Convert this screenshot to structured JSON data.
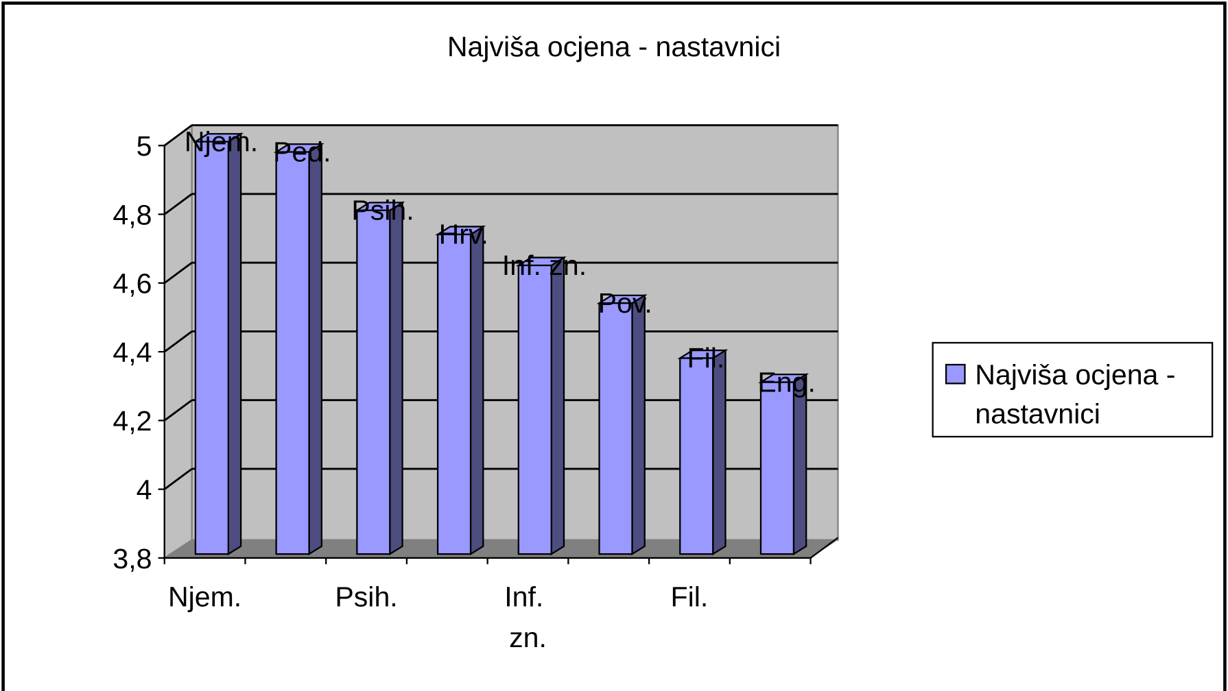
{
  "chart_data": {
    "type": "bar3d",
    "title": "Najviša ocjena - nastavnici",
    "categories": [
      "Njem.",
      "Ped.",
      "Psih.",
      "Hrv.",
      "Inf. zn.",
      "Pov.",
      "Fil.",
      "Eng."
    ],
    "series": [
      {
        "name": "Najviša ocjena - nastavnici",
        "color": "#9999ff",
        "values": [
          5.0,
          4.97,
          4.8,
          4.73,
          4.64,
          4.53,
          4.37,
          4.3
        ]
      }
    ],
    "ylim": [
      3.8,
      5
    ],
    "yticks": [
      {
        "value": 3.8,
        "label": "3,8"
      },
      4,
      {
        "value": 4.2,
        "label": "4,2"
      },
      {
        "value": 4.4,
        "label": "4,4"
      },
      {
        "value": 4.6,
        "label": "4,6"
      },
      {
        "value": 4.8,
        "label": "4,8"
      },
      5
    ],
    "grid": true,
    "legend": "right"
  }
}
